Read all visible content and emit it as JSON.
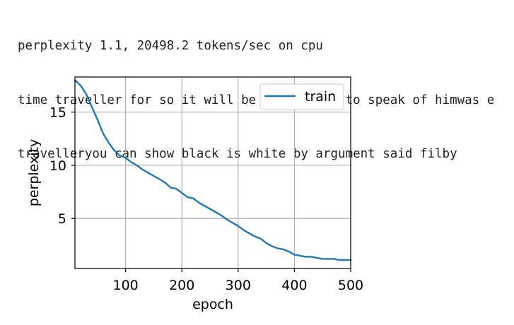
{
  "output_lines": [
    "perplexity 1.1, 20498.2 tokens/sec on cpu",
    "time traveller for so it will be convenient to speak of himwas e",
    "travelleryou can show black is white by argument said filby"
  ],
  "colors": {
    "series": "#1f77b4",
    "grid": "#b0b0b0",
    "axes": "#000000",
    "legend_border": "#cccccc"
  },
  "chart_data": {
    "type": "line",
    "xlabel": "epoch",
    "ylabel": "perplexity",
    "xlim": [
      10,
      500
    ],
    "ylim": [
      0.3,
      18.3
    ],
    "xticks": [
      100,
      200,
      300,
      400,
      500
    ],
    "yticks": [
      5,
      10,
      15
    ],
    "grid": true,
    "legend_position": "upper right",
    "series": [
      {
        "name": "train",
        "x": [
          10,
          20,
          30,
          40,
          50,
          60,
          70,
          80,
          90,
          100,
          110,
          120,
          130,
          140,
          150,
          160,
          170,
          180,
          190,
          200,
          210,
          220,
          230,
          240,
          250,
          260,
          270,
          280,
          290,
          300,
          310,
          320,
          330,
          340,
          350,
          360,
          370,
          380,
          390,
          400,
          410,
          420,
          430,
          440,
          450,
          460,
          470,
          480,
          490,
          500
        ],
        "y": [
          18.0,
          17.5,
          16.7,
          15.5,
          14.3,
          13.0,
          12.1,
          11.4,
          10.9,
          10.7,
          10.3,
          10.0,
          9.6,
          9.3,
          9.0,
          8.7,
          8.4,
          7.9,
          7.8,
          7.4,
          7.0,
          6.9,
          6.5,
          6.2,
          5.9,
          5.6,
          5.3,
          4.9,
          4.6,
          4.3,
          3.9,
          3.6,
          3.3,
          3.1,
          2.7,
          2.4,
          2.2,
          2.1,
          1.9,
          1.6,
          1.5,
          1.4,
          1.4,
          1.3,
          1.2,
          1.2,
          1.2,
          1.1,
          1.1,
          1.1
        ]
      }
    ]
  }
}
